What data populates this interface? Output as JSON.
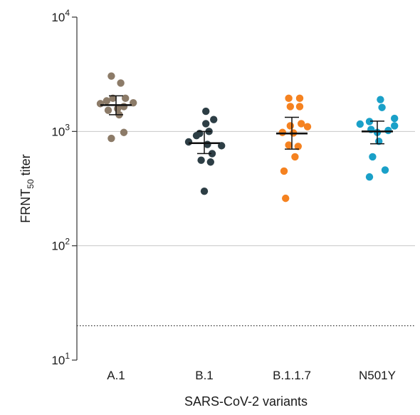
{
  "chart_data": {
    "type": "scatter",
    "xlabel": "SARS-CoV-2 variants",
    "ylabel_main": "FRNT",
    "ylabel_sub": "50",
    "ylabel_rest": " titer",
    "y_scale": "log10",
    "ylim": [
      10,
      10000
    ],
    "grid": "horizontal at 10^2, 10^3",
    "y_ticks": [
      {
        "value": 10,
        "base": "10",
        "exp": "1"
      },
      {
        "value": 100,
        "base": "10",
        "exp": "2"
      },
      {
        "value": 1000,
        "base": "10",
        "exp": "3"
      },
      {
        "value": 10000,
        "base": "10",
        "exp": "4"
      }
    ],
    "threshold": 20,
    "categories": [
      "A.1",
      "B.1",
      "B.1.1.7",
      "N501Y"
    ],
    "series": [
      {
        "color": "#8c7b68",
        "center": 1700,
        "ci": [
          1400,
          2050
        ],
        "points": [
          [
            -0.2,
            1750
          ],
          [
            -0.12,
            1850
          ],
          [
            -0.06,
            3050
          ],
          [
            0.06,
            2650
          ],
          [
            -0.04,
            1950
          ],
          [
            0.02,
            1580
          ],
          [
            0.12,
            1950
          ],
          [
            0.22,
            1780
          ],
          [
            -0.1,
            1530
          ],
          [
            0.1,
            1650
          ],
          [
            0.04,
            1400
          ],
          [
            0.1,
            980
          ],
          [
            -0.06,
            870
          ]
        ]
      },
      {
        "color": "#2d3e45",
        "center": 790,
        "ci": [
          640,
          1000
        ],
        "points": [
          [
            -0.2,
            810
          ],
          [
            -0.1,
            920
          ],
          [
            0.02,
            1500
          ],
          [
            0.12,
            1270
          ],
          [
            0.02,
            1170
          ],
          [
            -0.06,
            960
          ],
          [
            0.06,
            1000
          ],
          [
            0.22,
            750
          ],
          [
            0.04,
            770
          ],
          [
            0.1,
            640
          ],
          [
            -0.04,
            560
          ],
          [
            0.08,
            540
          ],
          [
            0.0,
            300
          ]
        ]
      },
      {
        "color": "#f58220",
        "center": 960,
        "ci": [
          700,
          1330
        ],
        "points": [
          [
            -0.04,
            1950
          ],
          [
            0.1,
            1950
          ],
          [
            -0.02,
            1650
          ],
          [
            0.1,
            1650
          ],
          [
            -0.02,
            1120
          ],
          [
            0.12,
            1170
          ],
          [
            0.2,
            1100
          ],
          [
            -0.12,
            980
          ],
          [
            0.02,
            970
          ],
          [
            -0.04,
            760
          ],
          [
            0.08,
            740
          ],
          [
            -0.1,
            450
          ],
          [
            0.04,
            600
          ],
          [
            -0.08,
            260
          ]
        ]
      },
      {
        "color": "#1aa0c8",
        "center": 1000,
        "ci": [
          780,
          1230
        ],
        "points": [
          [
            -0.22,
            1160
          ],
          [
            -0.1,
            1220
          ],
          [
            0.04,
            1900
          ],
          [
            0.06,
            1620
          ],
          [
            0.22,
            1300
          ],
          [
            0.22,
            1120
          ],
          [
            -0.08,
            1040
          ],
          [
            0.0,
            980
          ],
          [
            0.14,
            1020
          ],
          [
            0.02,
            820
          ],
          [
            -0.06,
            600
          ],
          [
            -0.1,
            400
          ],
          [
            0.1,
            460
          ]
        ]
      }
    ]
  }
}
